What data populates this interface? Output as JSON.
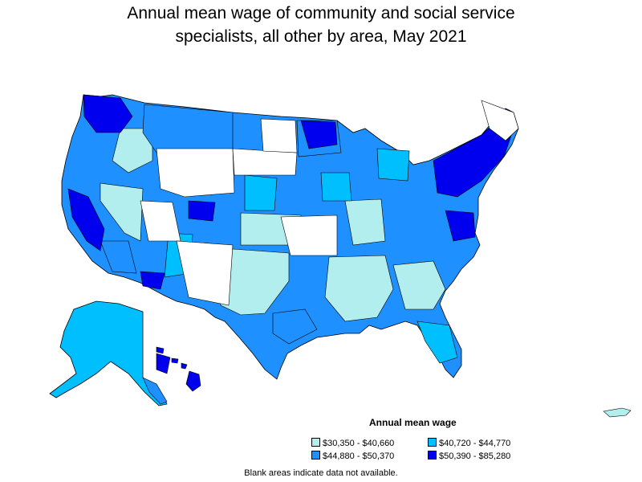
{
  "title_line1": "Annual mean wage of community and social service",
  "title_line2": "specialists, all other by area, May 2021",
  "legend": {
    "title": "Annual mean wage",
    "items": [
      {
        "label": "$30,350 - $40,660",
        "color": "#b2eeee"
      },
      {
        "label": "$40,720 - $44,770",
        "color": "#00bfff"
      },
      {
        "label": "$44,880 - $50,370",
        "color": "#1e90ff"
      },
      {
        "label": "$50,390 - $85,280",
        "color": "#0000ee"
      }
    ]
  },
  "footnote": "Blank areas indicate data not available.",
  "colors": {
    "border": "#000000",
    "blank": "#ffffff"
  }
}
